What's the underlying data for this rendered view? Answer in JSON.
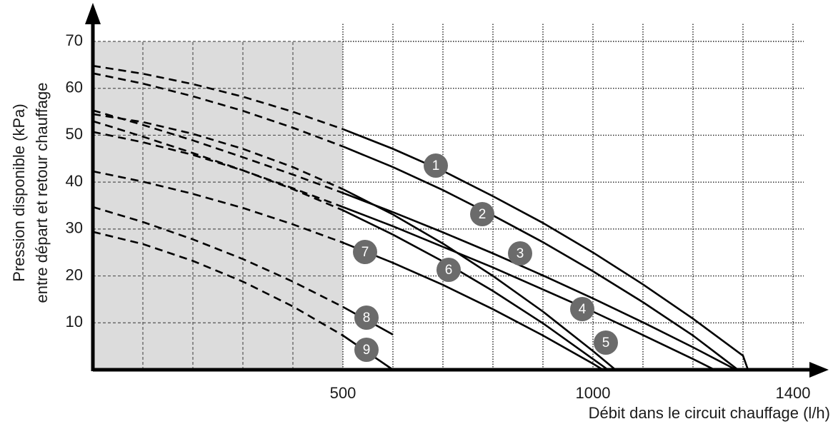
{
  "chart_data": {
    "type": "line",
    "xlabel": "Débit dans le circuit chauffage (l/h)",
    "ylabel": [
      "Pression disponible (kPa)",
      "entre départ et retour chauffage"
    ],
    "xlim": [
      0,
      1450
    ],
    "ylim": [
      0,
      77
    ],
    "xticks": [
      500,
      1000,
      1400
    ],
    "yticks": [
      10,
      20,
      30,
      40,
      50,
      60,
      70
    ],
    "xgrid": [
      100,
      200,
      300,
      400,
      500,
      600,
      700,
      800,
      900,
      1000,
      1100,
      1200,
      1300,
      1400
    ],
    "grid": true,
    "shade_xlim": [
      0,
      500
    ],
    "shade_ylim": [
      0,
      70
    ],
    "shade_color": "#dcdcdc",
    "dashed_below_x": 500,
    "series": [
      {
        "name": "1",
        "color": "#000000",
        "x": [
          0,
          100,
          200,
          300,
          400,
          500,
          600,
          700,
          800,
          900,
          1000,
          1100,
          1200,
          1300,
          1310
        ],
        "values": [
          64.8,
          63.1,
          60.9,
          58.2,
          55.0,
          51.3,
          47.1,
          42.4,
          37.0,
          31.3,
          25.0,
          18.2,
          10.9,
          3.0,
          0
        ]
      },
      {
        "name": "2",
        "color": "#000000",
        "x": [
          0,
          100,
          200,
          300,
          400,
          500,
          600,
          700,
          800,
          900,
          1000,
          1100,
          1200,
          1290
        ],
        "values": [
          63.2,
          61.0,
          58.3,
          55.2,
          51.6,
          47.6,
          43.2,
          38.3,
          32.9,
          27.2,
          21.0,
          14.4,
          7.3,
          0
        ]
      },
      {
        "name": "3",
        "color": "#000000",
        "x": [
          0,
          100,
          200,
          300,
          400,
          500,
          600,
          700,
          800,
          900,
          1000,
          1100,
          1200,
          1286
        ],
        "values": [
          55.3,
          52.2,
          48.9,
          45.3,
          41.6,
          37.7,
          33.6,
          29.3,
          24.8,
          20.1,
          15.2,
          10.1,
          4.8,
          0
        ]
      },
      {
        "name": "4",
        "color": "#000000",
        "x": [
          0,
          100,
          200,
          300,
          400,
          500,
          600,
          700,
          800,
          900,
          1000,
          1100,
          1200,
          1243
        ],
        "values": [
          53.0,
          49.7,
          46.2,
          42.5,
          38.7,
          34.7,
          30.6,
          26.2,
          21.8,
          17.1,
          12.4,
          7.4,
          2.3,
          0
        ]
      },
      {
        "name": "5",
        "color": "#000000",
        "x": [
          0,
          100,
          200,
          300,
          400,
          500,
          600,
          700,
          800,
          900,
          1000,
          1045
        ],
        "values": [
          54.5,
          52.8,
          50.3,
          47.1,
          43.2,
          38.5,
          33.1,
          26.9,
          20.0,
          12.4,
          4.0,
          0
        ]
      },
      {
        "name": "6",
        "color": "#000000",
        "x": [
          0,
          100,
          200,
          300,
          400,
          500,
          600,
          700,
          800,
          900,
          1000,
          1030
        ],
        "values": [
          50.7,
          48.5,
          45.8,
          42.5,
          38.5,
          34.0,
          28.8,
          23.1,
          16.8,
          9.9,
          2.3,
          0
        ]
      },
      {
        "name": "7",
        "color": "#000000",
        "x": [
          0,
          100,
          200,
          300,
          400,
          500,
          600,
          700,
          800,
          900,
          1000,
          1020
        ],
        "values": [
          42.3,
          40.1,
          37.5,
          34.5,
          31.0,
          27.1,
          22.8,
          18.1,
          12.9,
          7.3,
          1.3,
          0
        ]
      },
      {
        "name": "8",
        "color": "#000000",
        "x": [
          0,
          100,
          200,
          300,
          400,
          500,
          600
        ],
        "values": [
          34.7,
          31.5,
          27.8,
          23.6,
          18.8,
          13.4,
          7.5
        ]
      },
      {
        "name": "9",
        "color": "#000000",
        "x": [
          0,
          100,
          200,
          300,
          400,
          500,
          600
        ],
        "values": [
          29.4,
          26.8,
          23.2,
          18.8,
          13.5,
          7.3,
          0
        ]
      }
    ]
  }
}
